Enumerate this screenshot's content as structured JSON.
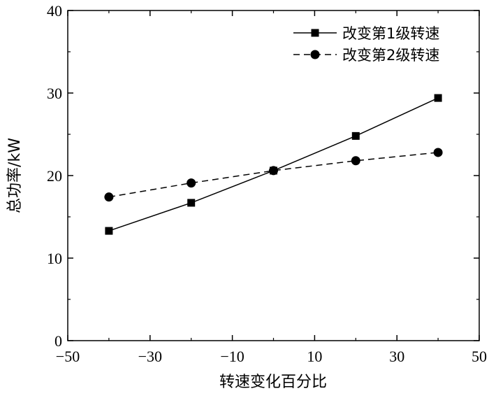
{
  "chart_data": {
    "type": "line",
    "xlabel": "转速变化百分比",
    "ylabel": "总功率/kW",
    "xlim": [
      -50,
      50
    ],
    "ylim": [
      0,
      40
    ],
    "x_ticks": [
      -50,
      -30,
      -10,
      10,
      30,
      50
    ],
    "x_tick_labels": [
      "−50",
      "−30",
      "−10",
      "10",
      "30",
      "50"
    ],
    "y_ticks": [
      0,
      10,
      20,
      30,
      40
    ],
    "y_tick_labels": [
      "0",
      "10",
      "20",
      "30",
      "40"
    ],
    "legend_position": "top-right",
    "grid": false,
    "series": [
      {
        "name": "改变第1级转速",
        "marker": "square",
        "line_style": "solid",
        "x": [
          -40,
          -20,
          0,
          20,
          40
        ],
        "y": [
          13.3,
          16.7,
          20.6,
          24.8,
          29.4
        ]
      },
      {
        "name": "改变第2级转速",
        "marker": "circle",
        "line_style": "dashed",
        "x": [
          -40,
          -20,
          0,
          20,
          40
        ],
        "y": [
          17.4,
          19.1,
          20.6,
          21.8,
          22.8
        ]
      }
    ]
  }
}
